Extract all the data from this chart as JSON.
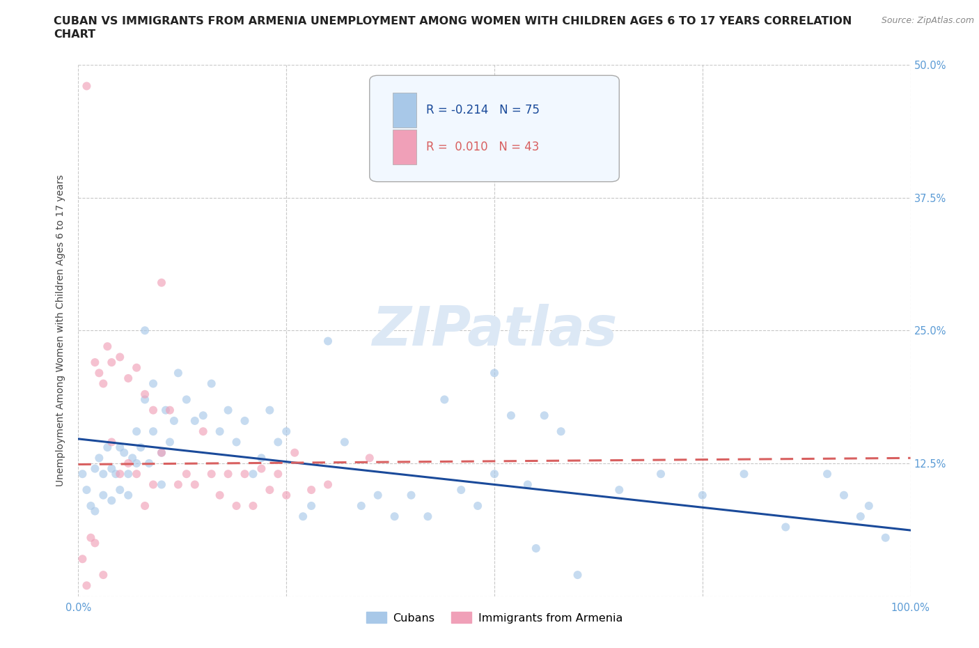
{
  "title_line1": "CUBAN VS IMMIGRANTS FROM ARMENIA UNEMPLOYMENT AMONG WOMEN WITH CHILDREN AGES 6 TO 17 YEARS CORRELATION",
  "title_line2": "CHART",
  "source": "Source: ZipAtlas.com",
  "ylabel": "Unemployment Among Women with Children Ages 6 to 17 years",
  "xlim": [
    0,
    1.0
  ],
  "ylim": [
    0,
    0.5
  ],
  "xticks": [
    0.0,
    0.25,
    0.5,
    0.75,
    1.0
  ],
  "xticklabels": [
    "0.0%",
    "",
    "",
    "",
    "100.0%"
  ],
  "yticks": [
    0.0,
    0.125,
    0.25,
    0.375,
    0.5
  ],
  "yticklabels_right": [
    "",
    "12.5%",
    "25.0%",
    "37.5%",
    "50.0%"
  ],
  "ytick_color": "#5b9bd5",
  "xtick_color": "#5b9bd5",
  "grid_color": "#c8c8c8",
  "background_color": "#ffffff",
  "watermark_text": "ZIPatlas",
  "watermark_color": "#dce8f5",
  "legend_R_cuban": "-0.214",
  "legend_N_cuban": "75",
  "legend_R_armenia": "0.010",
  "legend_N_armenia": "43",
  "cuban_color": "#a8c8e8",
  "armenia_color": "#f0a0b8",
  "cuban_line_color": "#1a4a9a",
  "armenia_line_color": "#d86060",
  "cuban_scatter_x": [
    0.005,
    0.01,
    0.015,
    0.02,
    0.02,
    0.025,
    0.03,
    0.03,
    0.035,
    0.04,
    0.04,
    0.045,
    0.05,
    0.05,
    0.055,
    0.06,
    0.06,
    0.065,
    0.07,
    0.07,
    0.075,
    0.08,
    0.08,
    0.085,
    0.09,
    0.09,
    0.1,
    0.1,
    0.105,
    0.11,
    0.115,
    0.12,
    0.13,
    0.14,
    0.15,
    0.16,
    0.17,
    0.18,
    0.19,
    0.2,
    0.21,
    0.22,
    0.23,
    0.24,
    0.25,
    0.27,
    0.28,
    0.3,
    0.32,
    0.34,
    0.36,
    0.38,
    0.4,
    0.42,
    0.44,
    0.46,
    0.48,
    0.5,
    0.55,
    0.6,
    0.65,
    0.7,
    0.75,
    0.8,
    0.85,
    0.9,
    0.92,
    0.94,
    0.95,
    0.97,
    0.5,
    0.52,
    0.54,
    0.56,
    0.58
  ],
  "cuban_scatter_y": [
    0.115,
    0.1,
    0.085,
    0.12,
    0.08,
    0.13,
    0.115,
    0.095,
    0.14,
    0.12,
    0.09,
    0.115,
    0.14,
    0.1,
    0.135,
    0.115,
    0.095,
    0.13,
    0.155,
    0.125,
    0.14,
    0.25,
    0.185,
    0.125,
    0.2,
    0.155,
    0.135,
    0.105,
    0.175,
    0.145,
    0.165,
    0.21,
    0.185,
    0.165,
    0.17,
    0.2,
    0.155,
    0.175,
    0.145,
    0.165,
    0.115,
    0.13,
    0.175,
    0.145,
    0.155,
    0.075,
    0.085,
    0.24,
    0.145,
    0.085,
    0.095,
    0.075,
    0.095,
    0.075,
    0.185,
    0.1,
    0.085,
    0.115,
    0.045,
    0.02,
    0.1,
    0.115,
    0.095,
    0.115,
    0.065,
    0.115,
    0.095,
    0.075,
    0.085,
    0.055,
    0.21,
    0.17,
    0.105,
    0.17,
    0.155
  ],
  "armenia_scatter_x": [
    0.005,
    0.01,
    0.01,
    0.015,
    0.02,
    0.02,
    0.025,
    0.03,
    0.03,
    0.035,
    0.04,
    0.04,
    0.05,
    0.05,
    0.06,
    0.06,
    0.07,
    0.07,
    0.08,
    0.08,
    0.09,
    0.09,
    0.1,
    0.1,
    0.11,
    0.12,
    0.13,
    0.14,
    0.15,
    0.16,
    0.17,
    0.18,
    0.19,
    0.2,
    0.21,
    0.22,
    0.23,
    0.24,
    0.25,
    0.26,
    0.28,
    0.3,
    0.35
  ],
  "armenia_scatter_y": [
    0.035,
    0.48,
    0.01,
    0.055,
    0.22,
    0.05,
    0.21,
    0.2,
    0.02,
    0.235,
    0.145,
    0.22,
    0.225,
    0.115,
    0.205,
    0.125,
    0.215,
    0.115,
    0.19,
    0.085,
    0.175,
    0.105,
    0.295,
    0.135,
    0.175,
    0.105,
    0.115,
    0.105,
    0.155,
    0.115,
    0.095,
    0.115,
    0.085,
    0.115,
    0.085,
    0.12,
    0.1,
    0.115,
    0.095,
    0.135,
    0.1,
    0.105,
    0.13
  ],
  "cuban_trend_y_start": 0.148,
  "cuban_trend_y_end": 0.062,
  "armenia_trend_y_start": 0.124,
  "armenia_trend_y_end": 0.13,
  "legend_cuban_label": "Cubans",
  "legend_armenia_label": "Immigrants from Armenia",
  "title_fontsize": 11.5,
  "axis_label_fontsize": 10,
  "tick_fontsize": 10.5,
  "scatter_size": 75,
  "scatter_alpha": 0.65,
  "line_width": 2.2
}
